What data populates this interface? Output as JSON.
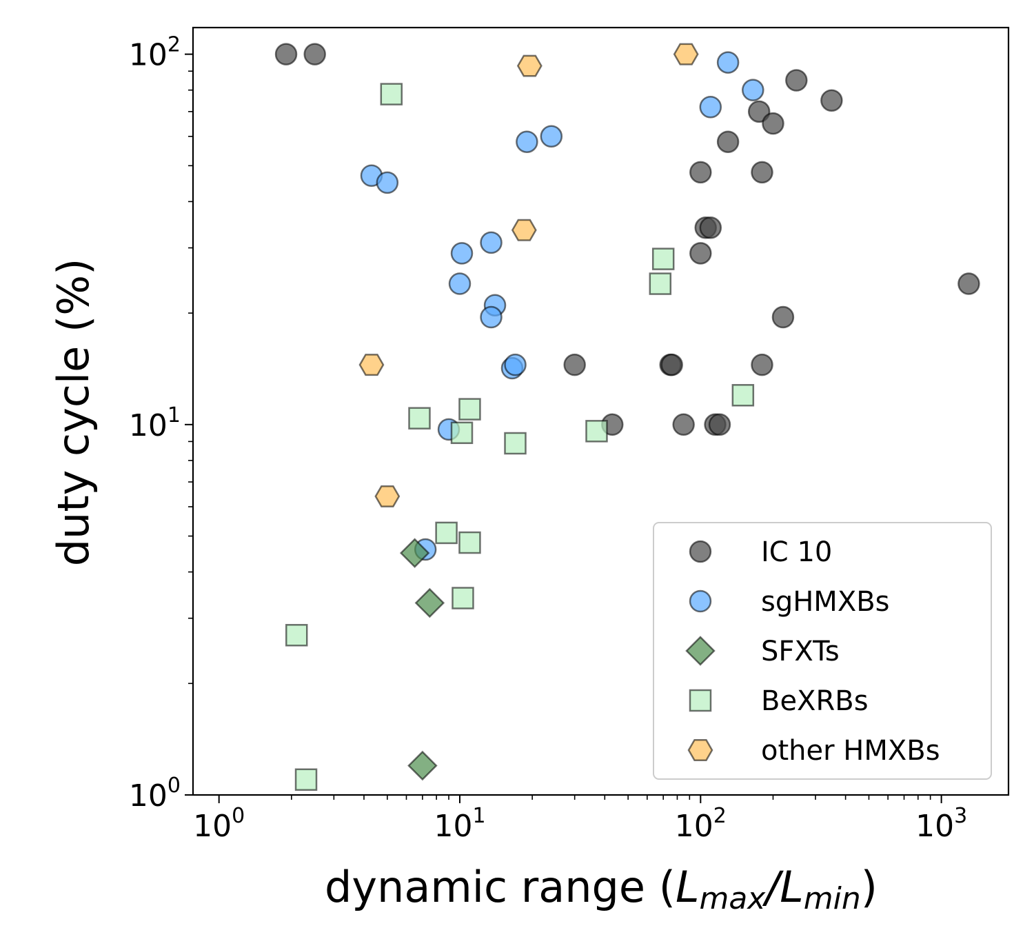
{
  "chart_data": {
    "type": "scatter",
    "title": "",
    "xlabel": {
      "prefix": "dynamic range (",
      "var1": "L",
      "sub1": "max",
      "slash": "/",
      "var2": "L",
      "sub2": "min",
      "suffix": ")"
    },
    "ylabel": "duty cycle (%)",
    "xscale": "log",
    "yscale": "log",
    "xlim": [
      0.78,
      1900
    ],
    "ylim": [
      1,
      118
    ],
    "xticks": [
      {
        "value": 1,
        "base": "10",
        "exp": "0"
      },
      {
        "value": 10,
        "base": "10",
        "exp": "1"
      },
      {
        "value": 100,
        "base": "10",
        "exp": "2"
      },
      {
        "value": 1000,
        "base": "10",
        "exp": "3"
      }
    ],
    "yticks": [
      {
        "value": 1,
        "base": "10",
        "exp": "0"
      },
      {
        "value": 10,
        "base": "10",
        "exp": "1"
      },
      {
        "value": 100,
        "base": "10",
        "exp": "2"
      }
    ],
    "legend_position": "lower-right",
    "series": [
      {
        "name": "IC 10",
        "marker": "circle",
        "color": "#4a4a4a",
        "points": [
          [
            1.9,
            100
          ],
          [
            2.5,
            100
          ],
          [
            250,
            85
          ],
          [
            350,
            75
          ],
          [
            175,
            70
          ],
          [
            200,
            65
          ],
          [
            130,
            58
          ],
          [
            100,
            48
          ],
          [
            180,
            48
          ],
          [
            105,
            34
          ],
          [
            110,
            34
          ],
          [
            100,
            29
          ],
          [
            1300,
            24
          ],
          [
            220,
            19.5
          ],
          [
            30,
            14.5
          ],
          [
            75,
            14.5
          ],
          [
            76,
            14.5
          ],
          [
            180,
            14.5
          ],
          [
            43,
            10
          ],
          [
            85,
            10
          ],
          [
            115,
            10
          ],
          [
            120,
            10
          ]
        ]
      },
      {
        "name": "sgHMXBs",
        "marker": "circle",
        "color": "#5aa9ff",
        "points": [
          [
            130,
            95
          ],
          [
            165,
            80
          ],
          [
            110,
            72
          ],
          [
            24,
            60
          ],
          [
            19,
            58
          ],
          [
            4.3,
            47
          ],
          [
            5,
            45
          ],
          [
            13.5,
            31
          ],
          [
            10.2,
            29
          ],
          [
            10,
            24
          ],
          [
            14,
            21
          ],
          [
            13.5,
            19.5
          ],
          [
            16.5,
            14.2
          ],
          [
            17,
            14.5
          ],
          [
            9,
            9.7
          ],
          [
            7.2,
            4.6
          ]
        ]
      },
      {
        "name": "SFXTs",
        "marker": "diamond",
        "color": "#4f8f4f",
        "points": [
          [
            6.5,
            4.5
          ],
          [
            7.5,
            3.3
          ],
          [
            7,
            1.2
          ]
        ]
      },
      {
        "name": "BeXRBs",
        "marker": "square",
        "color": "#b8f0c0",
        "points": [
          [
            5.2,
            78
          ],
          [
            70,
            28
          ],
          [
            68,
            24
          ],
          [
            150,
            12
          ],
          [
            11,
            11
          ],
          [
            6.8,
            10.4
          ],
          [
            10.2,
            9.5
          ],
          [
            37,
            9.6
          ],
          [
            17,
            8.9
          ],
          [
            8.8,
            5.1
          ],
          [
            11,
            4.8
          ],
          [
            10.3,
            3.4
          ],
          [
            2.1,
            2.7
          ],
          [
            2.3,
            1.1
          ]
        ]
      },
      {
        "name": "other HMXBs",
        "marker": "hexagon",
        "color": "#ffbf5a",
        "points": [
          [
            87,
            100
          ],
          [
            19.5,
            93
          ],
          [
            18.5,
            33.5
          ],
          [
            4.3,
            14.5
          ],
          [
            5,
            6.4
          ]
        ]
      }
    ]
  }
}
